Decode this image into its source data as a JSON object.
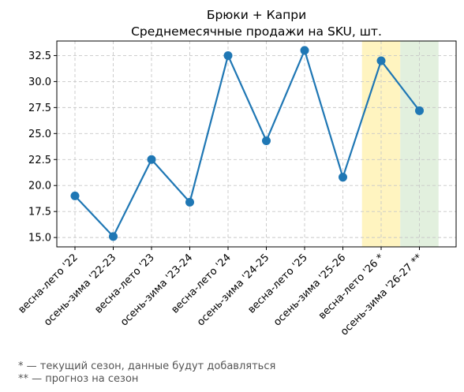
{
  "chart_data": {
    "type": "line",
    "title": [
      "Брюки + Капри",
      "Среднемесячные продажи на SKU, шт."
    ],
    "xlabel": "",
    "ylabel": "",
    "categories": [
      "весна-лето '22",
      "осень-зима '22-23",
      "весна-лето '23",
      "осень-зима '23-24",
      "весна-лето '24",
      "осень-зима '24-25",
      "весна-лето '25",
      "осень-зима '25-26",
      "весна-лето '26 *",
      "осень-зима '26-27 **"
    ],
    "series": [
      {
        "values": [
          19.0,
          15.1,
          22.5,
          18.4,
          32.5,
          24.3,
          33.0,
          20.8,
          32.0,
          27.2
        ],
        "color": "#1f77b4"
      }
    ],
    "ylim": [
      14.1,
      33.9
    ],
    "yticks": [
      15.0,
      17.5,
      20.0,
      22.5,
      25.0,
      27.5,
      30.0,
      32.5
    ],
    "ytick_labels": [
      "15.0",
      "17.5",
      "20.0",
      "22.5",
      "25.0",
      "27.5",
      "30.0",
      "32.5"
    ],
    "grid": true,
    "highlights": [
      {
        "category_index": 8,
        "color": "#fff4c0",
        "meaning": "current season"
      },
      {
        "category_index": 9,
        "color": "#e2f0de",
        "meaning": "forecast"
      }
    ]
  },
  "footnotes": [
    "* — текущий сезон, данные будут добавляться",
    "** — прогноз на сезон"
  ]
}
